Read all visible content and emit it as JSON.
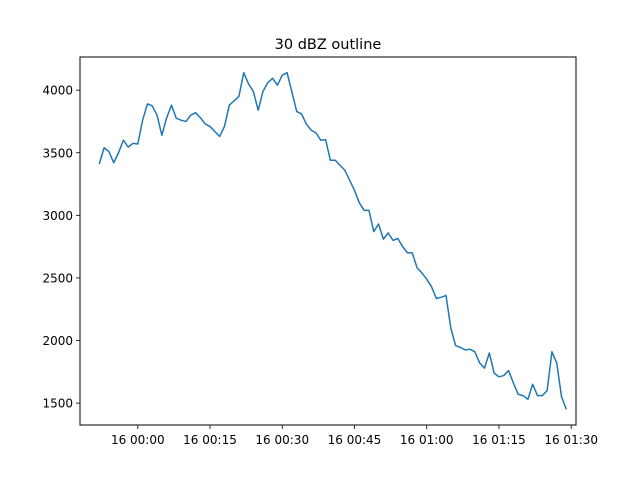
{
  "chart_data": {
    "type": "line",
    "title": "30 dBZ outline",
    "xlabel": "",
    "ylabel": "",
    "x_unit": "time",
    "x": [
      "23:52",
      "23:53",
      "23:54",
      "23:55",
      "23:56",
      "23:57",
      "23:58",
      "23:59",
      "00:00",
      "00:01",
      "00:02",
      "00:03",
      "00:04",
      "00:05",
      "00:06",
      "00:07",
      "00:08",
      "00:09",
      "00:10",
      "00:11",
      "00:12",
      "00:13",
      "00:14",
      "00:15",
      "00:16",
      "00:17",
      "00:18",
      "00:19",
      "00:20",
      "00:21",
      "00:22",
      "00:23",
      "00:24",
      "00:25",
      "00:26",
      "00:27",
      "00:28",
      "00:29",
      "00:30",
      "00:31",
      "00:32",
      "00:33",
      "00:34",
      "00:35",
      "00:36",
      "00:37",
      "00:38",
      "00:39",
      "00:40",
      "00:41",
      "00:42",
      "00:43",
      "00:44",
      "00:45",
      "00:46",
      "00:47",
      "00:48",
      "00:49",
      "00:50",
      "00:51",
      "00:52",
      "00:53",
      "00:54",
      "00:55",
      "00:56",
      "00:57",
      "00:58",
      "00:59",
      "01:00",
      "01:01",
      "01:02",
      "01:03",
      "01:04",
      "01:05",
      "01:06",
      "01:07",
      "01:08",
      "01:09",
      "01:10",
      "01:11",
      "01:12",
      "01:13",
      "01:14",
      "01:15",
      "01:16",
      "01:17",
      "01:18",
      "01:19",
      "01:20",
      "01:21",
      "01:22",
      "01:23",
      "01:24",
      "01:25",
      "01:26",
      "01:27",
      "01:28",
      "01:29"
    ],
    "series": [
      {
        "color": "#1f77b4",
        "values": [
          3410,
          3540,
          3510,
          3420,
          3500,
          3600,
          3545,
          3575,
          3570,
          3760,
          3890,
          3875,
          3800,
          3640,
          3780,
          3880,
          3775,
          3760,
          3750,
          3800,
          3820,
          3780,
          3730,
          3710,
          3670,
          3630,
          3710,
          3880,
          3915,
          3950,
          4140,
          4050,
          3990,
          3840,
          3990,
          4060,
          4095,
          4040,
          4120,
          4140,
          3985,
          3830,
          3810,
          3730,
          3680,
          3660,
          3600,
          3605,
          3440,
          3440,
          3400,
          3360,
          3280,
          3200,
          3100,
          3040,
          3040,
          2870,
          2930,
          2810,
          2860,
          2800,
          2815,
          2750,
          2700,
          2700,
          2580,
          2540,
          2490,
          2430,
          2335,
          2345,
          2360,
          2100,
          1960,
          1945,
          1925,
          1930,
          1910,
          1820,
          1780,
          1900,
          1740,
          1710,
          1720,
          1760,
          1660,
          1570,
          1560,
          1530,
          1650,
          1560,
          1560,
          1600,
          1910,
          1820,
          1550,
          1450
        ]
      }
    ],
    "xticks": [
      "16 00:00",
      "16 00:15",
      "16 00:30",
      "16 00:45",
      "16 01:00",
      "16 01:15",
      "16 01:30"
    ],
    "xtick_times": [
      "00:00",
      "00:15",
      "00:30",
      "00:45",
      "01:00",
      "01:15",
      "01:30"
    ],
    "xlim": [
      "23:48",
      "01:31"
    ],
    "yticks": [
      "1500",
      "2000",
      "2500",
      "3000",
      "3500",
      "4000"
    ],
    "ytick_values": [
      1500,
      2000,
      2500,
      3000,
      3500,
      4000
    ],
    "ylim": [
      1325,
      4265
    ],
    "grid": false,
    "legend": "none"
  }
}
